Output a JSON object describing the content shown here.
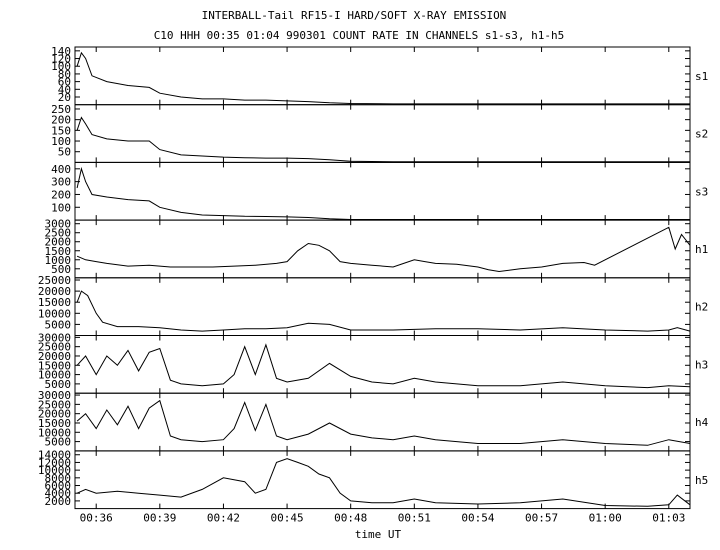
{
  "title_line1": "INTERBALL-Tail RF15-I HARD/SOFT X-RAY EMISSION",
  "title_line2": "C10 HHH 00:35 01:04 990301  COUNT RATE IN CHANNELS s1-s3, h1-h5",
  "chart_data": {
    "type": "line",
    "title": "INTERBALL-Tail RF15-I HARD/SOFT X-RAY EMISSION",
    "subtitle": "C10 HHH 00:35 01:04 990301  COUNT RATE IN CHANNELS s1-s3, h1-h5",
    "xlabel": "time UT",
    "x_ticks": [
      "00:36",
      "00:39",
      "00:42",
      "00:45",
      "00:48",
      "00:51",
      "00:54",
      "00:57",
      "01:00",
      "01:03"
    ],
    "x_tick_minutes": [
      36,
      39,
      42,
      45,
      48,
      51,
      54,
      57,
      60,
      63
    ],
    "xlim_minutes": [
      35,
      64
    ],
    "grid": false,
    "panels": [
      {
        "name": "s1",
        "ylim": [
          0,
          150
        ],
        "y_ticks": [
          "140",
          "120",
          "100",
          "80",
          "60",
          "40",
          "20"
        ],
        "y_tick_values": [
          140,
          120,
          100,
          80,
          60,
          40,
          20
        ],
        "x": [
          35.1,
          35.3,
          35.5,
          35.8,
          36.5,
          37.5,
          38.5,
          39.0,
          40.0,
          41.0,
          42.0,
          43.0,
          44.0,
          45.0,
          46.0,
          47.0,
          48.0,
          50.0,
          55.0,
          60.0,
          63.0,
          64.0
        ],
        "y": [
          100,
          135,
          120,
          75,
          60,
          50,
          45,
          30,
          20,
          15,
          15,
          12,
          12,
          10,
          8,
          5,
          3,
          2,
          2,
          2,
          2,
          2
        ]
      },
      {
        "name": "s2",
        "ylim": [
          0,
          270
        ],
        "y_ticks": [
          "250",
          "200",
          "150",
          "100",
          "50"
        ],
        "y_tick_values": [
          250,
          200,
          150,
          100,
          50
        ],
        "x": [
          35.1,
          35.3,
          35.5,
          35.8,
          36.5,
          37.5,
          38.5,
          39.0,
          40.0,
          41.0,
          42.0,
          43.0,
          44.0,
          45.0,
          46.0,
          47.0,
          48.0,
          50.0,
          55.0,
          60.0,
          63.0,
          64.0
        ],
        "y": [
          150,
          210,
          180,
          130,
          110,
          100,
          100,
          60,
          35,
          30,
          25,
          22,
          20,
          20,
          18,
          12,
          5,
          3,
          3,
          3,
          3,
          3
        ]
      },
      {
        "name": "s3",
        "ylim": [
          0,
          450
        ],
        "y_ticks": [
          "400",
          "300",
          "200",
          "100"
        ],
        "y_tick_values": [
          400,
          300,
          200,
          100
        ],
        "x": [
          35.1,
          35.3,
          35.5,
          35.8,
          36.5,
          37.5,
          38.5,
          39.0,
          40.0,
          41.0,
          42.0,
          43.0,
          44.0,
          45.0,
          46.0,
          47.0,
          48.0,
          50.0,
          55.0,
          60.0,
          63.0,
          64.0
        ],
        "y": [
          250,
          400,
          300,
          200,
          180,
          160,
          150,
          100,
          60,
          40,
          35,
          30,
          28,
          25,
          20,
          10,
          5,
          5,
          5,
          5,
          5,
          5
        ]
      },
      {
        "name": "h1",
        "ylim": [
          0,
          3200
        ],
        "y_ticks": [
          "3000",
          "2500",
          "2000",
          "1500",
          "1000",
          "500"
        ],
        "y_tick_values": [
          3000,
          2500,
          2000,
          1500,
          1000,
          500
        ],
        "x": [
          35.1,
          35.5,
          36.0,
          36.5,
          37.5,
          38.5,
          39.5,
          40.5,
          41.5,
          42.5,
          43.5,
          44.5,
          45.0,
          45.5,
          46.0,
          46.5,
          47.0,
          47.5,
          48.0,
          49.0,
          50.0,
          50.5,
          51.0,
          51.5,
          52.0,
          53.0,
          54.0,
          54.5,
          55.0,
          56.0,
          57.0,
          58.0,
          59.0,
          59.5,
          63.0,
          63.3,
          63.6,
          64.0
        ],
        "y": [
          1200,
          1000,
          900,
          800,
          650,
          700,
          600,
          600,
          600,
          650,
          700,
          800,
          900,
          1500,
          1900,
          1800,
          1500,
          900,
          800,
          700,
          600,
          800,
          1000,
          900,
          800,
          750,
          600,
          450,
          350,
          500,
          600,
          800,
          850,
          700,
          2800,
          1600,
          2400,
          1800
        ]
      },
      {
        "name": "h2",
        "ylim": [
          0,
          26000
        ],
        "y_ticks": [
          "25000",
          "20000",
          "15000",
          "10000",
          "5000"
        ],
        "y_tick_values": [
          25000,
          20000,
          15000,
          10000,
          5000
        ],
        "x": [
          35.1,
          35.3,
          35.6,
          36.0,
          36.3,
          37.0,
          38.0,
          39.0,
          40.0,
          41.0,
          42.0,
          43.0,
          44.0,
          45.0,
          46.0,
          47.0,
          48.0,
          50.0,
          52.0,
          54.0,
          56.0,
          58.0,
          60.0,
          62.0,
          63.0,
          63.4,
          64.0
        ],
        "y": [
          15000,
          20000,
          18000,
          10000,
          6000,
          4000,
          4000,
          3500,
          2500,
          2000,
          2500,
          3000,
          3000,
          3500,
          5500,
          5000,
          2500,
          2500,
          3000,
          3000,
          2500,
          3500,
          2500,
          2000,
          2500,
          3500,
          2000
        ]
      },
      {
        "name": "h3",
        "ylim": [
          0,
          31000
        ],
        "y_ticks": [
          "30000",
          "25000",
          "20000",
          "15000",
          "10000",
          "5000"
        ],
        "y_tick_values": [
          30000,
          25000,
          20000,
          15000,
          10000,
          5000
        ],
        "x": [
          35.1,
          35.5,
          36.0,
          36.5,
          37.0,
          37.5,
          38.0,
          38.5,
          39.0,
          39.5,
          40.0,
          41.0,
          42.0,
          42.5,
          43.0,
          43.5,
          44.0,
          44.5,
          45.0,
          46.0,
          47.0,
          48.0,
          49.0,
          50.0,
          51.0,
          52.0,
          53.0,
          54.0,
          56.0,
          58.0,
          60.0,
          62.0,
          63.0,
          64.0
        ],
        "y": [
          15000,
          20000,
          10000,
          20000,
          15000,
          23000,
          12000,
          22000,
          24000,
          7000,
          5000,
          4000,
          5000,
          10000,
          25000,
          10000,
          26000,
          8000,
          6000,
          8000,
          16000,
          9000,
          6000,
          5000,
          8000,
          6000,
          5000,
          4000,
          4000,
          6000,
          4000,
          3000,
          4000,
          3500
        ]
      },
      {
        "name": "h4",
        "ylim": [
          0,
          31000
        ],
        "y_ticks": [
          "30000",
          "25000",
          "20000",
          "15000",
          "10000",
          "5000"
        ],
        "y_tick_values": [
          30000,
          25000,
          20000,
          15000,
          10000,
          5000
        ],
        "x": [
          35.1,
          35.5,
          36.0,
          36.5,
          37.0,
          37.5,
          38.0,
          38.5,
          39.0,
          39.5,
          40.0,
          41.0,
          42.0,
          42.5,
          43.0,
          43.5,
          44.0,
          44.5,
          45.0,
          46.0,
          47.0,
          48.0,
          49.0,
          50.0,
          51.0,
          52.0,
          53.0,
          54.0,
          56.0,
          58.0,
          60.0,
          62.0,
          63.0,
          64.0
        ],
        "y": [
          16000,
          20000,
          12000,
          22000,
          14000,
          24000,
          12000,
          23000,
          27000,
          8000,
          6000,
          5000,
          6000,
          12000,
          26000,
          11000,
          25000,
          8000,
          6000,
          9000,
          15000,
          9000,
          7000,
          6000,
          8000,
          6000,
          5000,
          4000,
          4000,
          6000,
          4000,
          3000,
          6000,
          4000
        ]
      },
      {
        "name": "h5",
        "ylim": [
          0,
          15000
        ],
        "y_ticks": [
          "14000",
          "12000",
          "10000",
          "8000",
          "6000",
          "4000",
          "2000"
        ],
        "y_tick_values": [
          14000,
          12000,
          10000,
          8000,
          6000,
          4000,
          2000
        ],
        "x": [
          35.1,
          35.5,
          36.0,
          37.0,
          38.0,
          39.0,
          40.0,
          41.0,
          42.0,
          43.0,
          43.5,
          44.0,
          44.5,
          45.0,
          45.5,
          46.0,
          46.5,
          47.0,
          47.5,
          48.0,
          49.0,
          50.0,
          51.0,
          52.0,
          54.0,
          56.0,
          58.0,
          60.0,
          62.0,
          63.0,
          63.4,
          64.0
        ],
        "y": [
          4000,
          5000,
          4000,
          4500,
          4000,
          3500,
          3000,
          5000,
          8000,
          7000,
          4000,
          5000,
          12000,
          13000,
          12000,
          11000,
          9000,
          8000,
          4000,
          2000,
          1500,
          1500,
          2500,
          1500,
          1200,
          1500,
          2500,
          800,
          600,
          1000,
          3500,
          1000
        ]
      }
    ]
  }
}
